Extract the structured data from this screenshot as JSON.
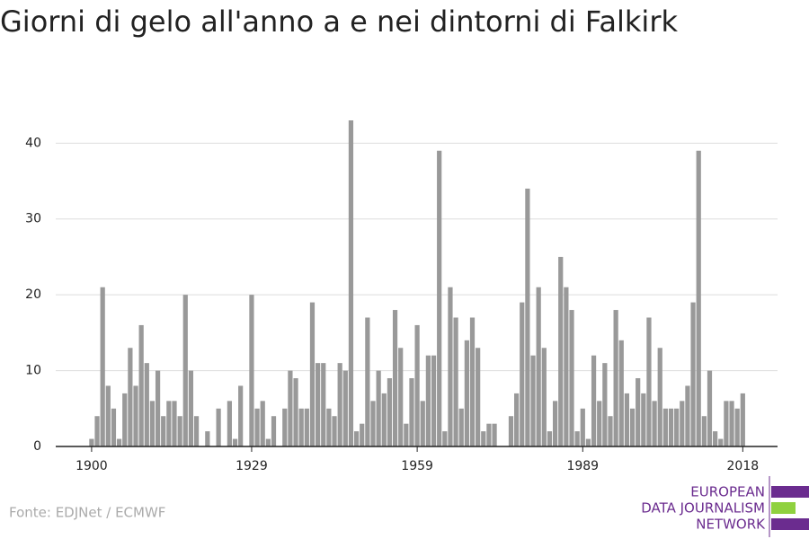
{
  "chart_data": {
    "type": "bar",
    "title": "Giorni di gelo all'anno a e nei dintorni di Falkirk",
    "source": "Fonte: EDJNet / ECMWF",
    "logo": [
      "EUROPEAN",
      "DATA JOURNALISM",
      "NETWORK"
    ],
    "color": "#999999",
    "grid": true,
    "x": [
      1900,
      1901,
      1902,
      1903,
      1904,
      1905,
      1906,
      1907,
      1908,
      1909,
      1910,
      1911,
      1912,
      1913,
      1914,
      1915,
      1916,
      1917,
      1918,
      1919,
      1920,
      1921,
      1922,
      1923,
      1924,
      1925,
      1926,
      1927,
      1928,
      1929,
      1930,
      1931,
      1932,
      1933,
      1934,
      1935,
      1936,
      1937,
      1938,
      1939,
      1940,
      1941,
      1942,
      1943,
      1944,
      1945,
      1946,
      1947,
      1948,
      1949,
      1950,
      1951,
      1952,
      1953,
      1954,
      1955,
      1956,
      1957,
      1958,
      1959,
      1960,
      1961,
      1962,
      1963,
      1964,
      1965,
      1966,
      1967,
      1968,
      1969,
      1970,
      1971,
      1972,
      1973,
      1974,
      1975,
      1976,
      1977,
      1978,
      1979,
      1980,
      1981,
      1982,
      1983,
      1984,
      1985,
      1986,
      1987,
      1988,
      1989,
      1990,
      1991,
      1992,
      1993,
      1994,
      1995,
      1996,
      1997,
      1998,
      1999,
      2000,
      2001,
      2002,
      2003,
      2004,
      2005,
      2006,
      2007,
      2008,
      2009,
      2010,
      2011,
      2012,
      2013,
      2014,
      2015,
      2016,
      2017,
      2018
    ],
    "values": [
      1,
      4,
      21,
      8,
      5,
      1,
      7,
      13,
      8,
      16,
      11,
      6,
      10,
      4,
      6,
      6,
      4,
      20,
      10,
      4,
      0,
      2,
      0,
      5,
      0,
      6,
      1,
      8,
      0,
      20,
      5,
      6,
      1,
      4,
      0,
      5,
      10,
      9,
      5,
      5,
      19,
      11,
      11,
      5,
      4,
      11,
      10,
      43,
      2,
      3,
      17,
      6,
      10,
      7,
      9,
      18,
      13,
      3,
      9,
      16,
      6,
      12,
      12,
      39,
      2,
      21,
      17,
      5,
      14,
      17,
      13,
      2,
      3,
      3,
      0,
      0,
      4,
      7,
      19,
      34,
      12,
      21,
      13,
      2,
      6,
      25,
      21,
      18,
      2,
      5,
      1,
      12,
      6,
      11,
      4,
      18,
      14,
      7,
      5,
      9,
      7,
      17,
      6,
      13,
      5,
      5,
      5,
      6,
      8,
      19,
      39,
      4,
      10,
      2,
      1,
      6,
      6,
      5,
      7
    ],
    "xlim": [
      1893.5,
      2024.3
    ],
    "xticks": [
      1900,
      1929,
      1959,
      1989,
      2018
    ],
    "ylim": [
      0,
      43
    ],
    "yticks": [
      0,
      10,
      20,
      30,
      40
    ]
  }
}
